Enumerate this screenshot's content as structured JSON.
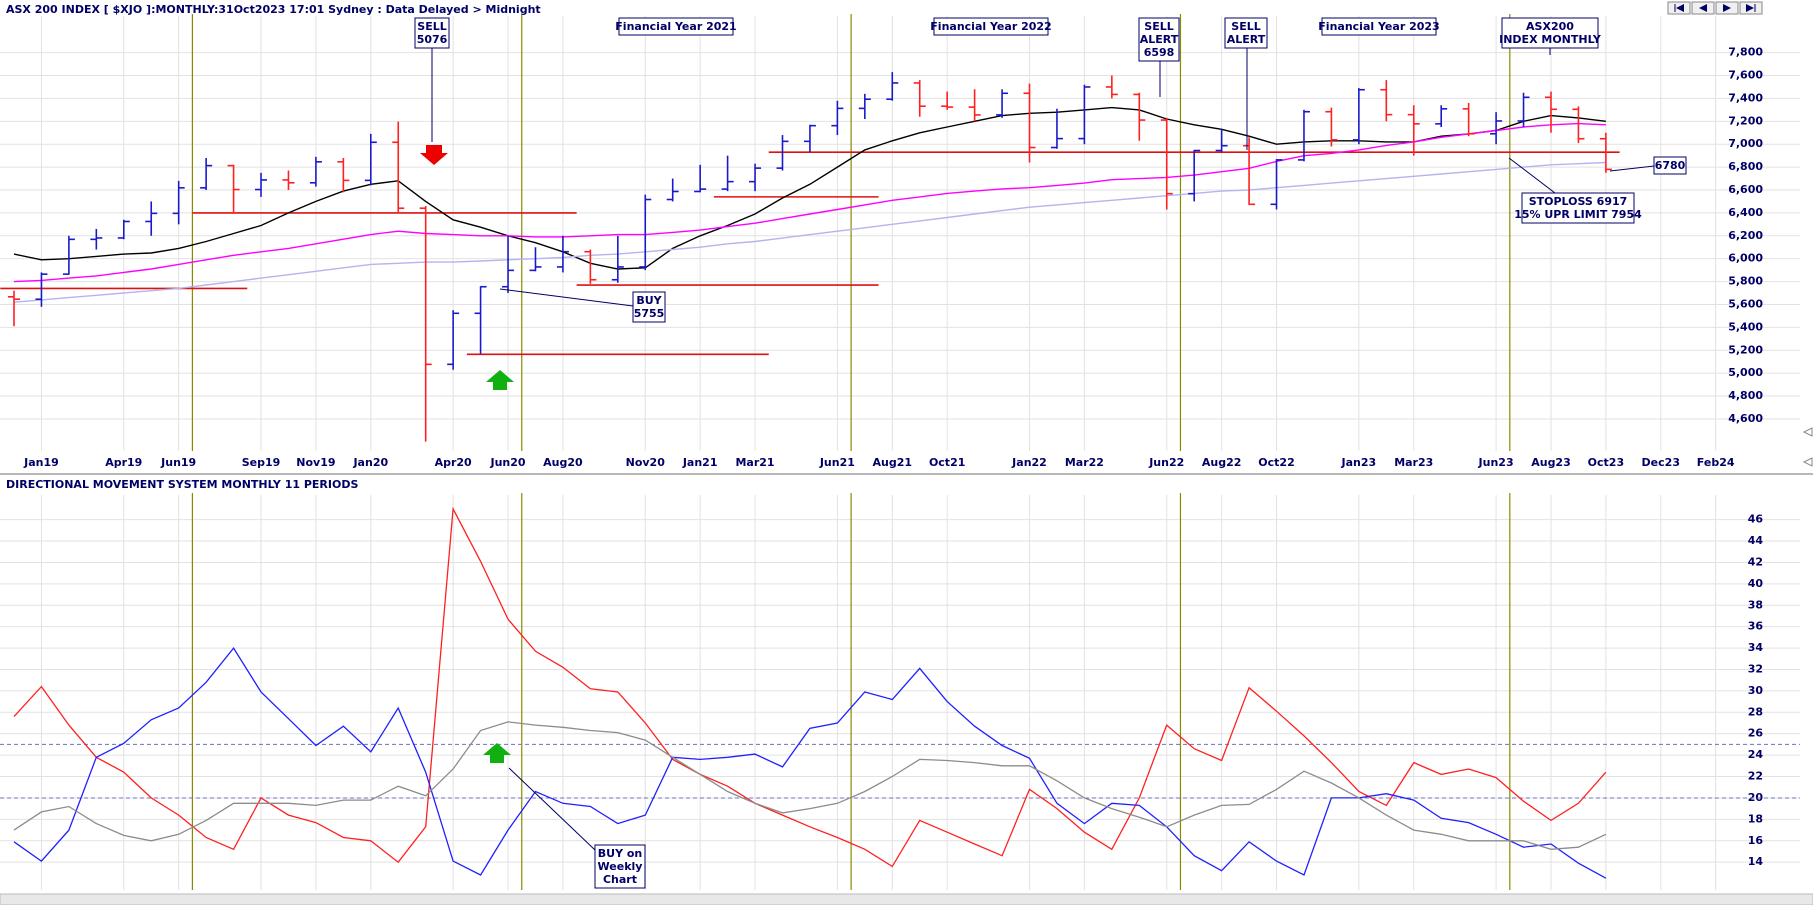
{
  "chart_data": [
    {
      "type": "ohlc",
      "title": "ASX 200 INDEX [ $XJO ]:MONTHLY:31Oct2023 17:01 Sydney : Data Delayed > Midnight",
      "x": [
        "2018-12",
        "2019-01",
        "2019-02",
        "2019-03",
        "2019-04",
        "2019-05",
        "2019-06",
        "2019-07",
        "2019-08",
        "2019-09",
        "2019-10",
        "2019-11",
        "2019-12",
        "2020-01",
        "2020-02",
        "2020-03",
        "2020-04",
        "2020-05",
        "2020-06",
        "2020-07",
        "2020-08",
        "2020-09",
        "2020-10",
        "2020-11",
        "2020-12",
        "2021-01",
        "2021-02",
        "2021-03",
        "2021-04",
        "2021-05",
        "2021-06",
        "2021-07",
        "2021-08",
        "2021-09",
        "2021-10",
        "2021-11",
        "2021-12",
        "2022-01",
        "2022-02",
        "2022-03",
        "2022-04",
        "2022-05",
        "2022-06",
        "2022-07",
        "2022-08",
        "2022-09",
        "2022-10",
        "2022-11",
        "2022-12",
        "2023-01",
        "2023-02",
        "2023-03",
        "2023-04",
        "2023-05",
        "2023-06",
        "2023-07",
        "2023-08",
        "2023-09",
        "2023-10"
      ],
      "open": [
        5667,
        5646,
        5865,
        6169,
        6181,
        6325,
        6396,
        6619,
        6813,
        6604,
        6688,
        6663,
        6846,
        6684,
        7017,
        6441,
        5077,
        5523,
        5755,
        5898,
        5928,
        6061,
        5816,
        5928,
        6517,
        6587,
        6608,
        6673,
        6791,
        7025,
        7162,
        7313,
        7393,
        7535,
        7332,
        7324,
        7256,
        7445,
        6971,
        7049,
        7500,
        7435,
        7211,
        6568,
        6945,
        6987,
        6475,
        6863,
        7284,
        7038,
        7476,
        7258,
        7178,
        7309,
        7091,
        7203,
        7410,
        7305,
        7048
      ],
      "high": [
        5720,
        5880,
        6200,
        6260,
        6340,
        6500,
        6680,
        6880,
        6820,
        6750,
        6770,
        6890,
        6880,
        7090,
        7197,
        6460,
        5550,
        5760,
        6200,
        6100,
        6200,
        6080,
        6200,
        6560,
        6700,
        6820,
        6900,
        6830,
        7080,
        7170,
        7380,
        7440,
        7630,
        7560,
        7460,
        7480,
        7480,
        7530,
        7310,
        7520,
        7600,
        7450,
        7230,
        6950,
        7130,
        7060,
        6870,
        7300,
        7320,
        7490,
        7560,
        7340,
        7340,
        7360,
        7280,
        7450,
        7460,
        7330,
        7100
      ],
      "low": [
        5410,
        5580,
        5860,
        6080,
        6170,
        6200,
        6300,
        6600,
        6400,
        6540,
        6600,
        6630,
        6580,
        6640,
        6400,
        4402,
        5030,
        5170,
        5700,
        5890,
        5880,
        5780,
        5790,
        5900,
        6500,
        6580,
        6590,
        6590,
        6770,
        6930,
        7080,
        7220,
        7380,
        7240,
        7300,
        7200,
        7230,
        6840,
        6960,
        7000,
        7400,
        7030,
        6430,
        6500,
        6930,
        6470,
        6430,
        6850,
        6980,
        7000,
        7200,
        6900,
        7150,
        7070,
        7000,
        7150,
        7100,
        7010,
        6750
      ],
      "close": [
        5646,
        5865,
        6169,
        6181,
        6325,
        6396,
        6619,
        6813,
        6604,
        6688,
        6663,
        6846,
        6684,
        7017,
        6441,
        5077,
        5523,
        5755,
        5898,
        5928,
        6061,
        5816,
        5928,
        6517,
        6587,
        6608,
        6673,
        6791,
        7025,
        7162,
        7313,
        7393,
        7535,
        7332,
        7324,
        7256,
        7445,
        6971,
        7049,
        7500,
        7435,
        7211,
        6568,
        6945,
        6987,
        6475,
        6863,
        7284,
        7038,
        7476,
        7258,
        7178,
        7309,
        7091,
        7203,
        7410,
        7305,
        7048,
        6780
      ],
      "up_color": "#1a1acc",
      "down_color": "#ff2020",
      "lines": [
        {
          "color": "#000000",
          "values": [
            6040,
            5990,
            6000,
            6020,
            6040,
            6050,
            6090,
            6150,
            6220,
            6290,
            6400,
            6500,
            6590,
            6650,
            6680,
            6500,
            6340,
            6275,
            6200,
            6140,
            6060,
            5960,
            5910,
            5920,
            6090,
            6200,
            6290,
            6390,
            6530,
            6650,
            6800,
            6950,
            7030,
            7100,
            7150,
            7200,
            7250,
            7270,
            7280,
            7300,
            7320,
            7300,
            7220,
            7170,
            7130,
            7070,
            7000,
            7020,
            7030,
            7030,
            7020,
            7020,
            7070,
            7090,
            7120,
            7200,
            7250,
            7230,
            7200
          ]
        },
        {
          "color": "#ff00ff",
          "values": [
            5800,
            5810,
            5830,
            5850,
            5880,
            5910,
            5950,
            5990,
            6030,
            6060,
            6090,
            6130,
            6170,
            6210,
            6240,
            6220,
            6210,
            6200,
            6200,
            6190,
            6190,
            6200,
            6210,
            6210,
            6230,
            6250,
            6280,
            6310,
            6350,
            6390,
            6430,
            6470,
            6510,
            6540,
            6570,
            6590,
            6610,
            6620,
            6640,
            6660,
            6690,
            6700,
            6710,
            6730,
            6760,
            6790,
            6850,
            6900,
            6920,
            6950,
            6990,
            7020,
            7060,
            7090,
            7120,
            7150,
            7170,
            7180,
            7170
          ]
        },
        {
          "color": "#b4b4f0",
          "values": [
            5620,
            5640,
            5660,
            5680,
            5700,
            5720,
            5740,
            5770,
            5800,
            5830,
            5860,
            5890,
            5920,
            5950,
            5960,
            5970,
            5970,
            5980,
            5990,
            6000,
            6010,
            6030,
            6040,
            6060,
            6080,
            6100,
            6130,
            6150,
            6180,
            6210,
            6240,
            6270,
            6300,
            6330,
            6360,
            6390,
            6420,
            6450,
            6470,
            6490,
            6510,
            6530,
            6550,
            6570,
            6590,
            6600,
            6620,
            6640,
            6660,
            6680,
            6700,
            6720,
            6740,
            6760,
            6780,
            6800,
            6820,
            6830,
            6840
          ]
        }
      ],
      "levels": [
        {
          "value": 5740,
          "from": "2018-12",
          "to": "2019-08"
        },
        {
          "value": 6400,
          "from": "2019-07",
          "to": "2020-08"
        },
        {
          "value": 5165,
          "from": "2020-05",
          "to": "2021-03"
        },
        {
          "value": 5770,
          "from": "2020-09",
          "to": "2021-07"
        },
        {
          "value": 6540,
          "from": "2021-02",
          "to": "2021-07"
        },
        {
          "value": 6930,
          "from": "2021-04",
          "to": "2023-10"
        }
      ],
      "level_color": "#e01010",
      "fy_lines": [
        "2019-07",
        "2020-07",
        "2021-07",
        "2022-07",
        "2023-07"
      ],
      "fy_color": "#8a8a00",
      "xlim": [
        "2018-12",
        "2024-05"
      ],
      "xticks": [
        {
          "value": "2019-01",
          "label": "Jan19"
        },
        {
          "value": "2019-04",
          "label": "Apr19"
        },
        {
          "value": "2019-06",
          "label": "Jun19"
        },
        {
          "value": "2019-09",
          "label": "Sep19"
        },
        {
          "value": "2019-11",
          "label": "Nov19"
        },
        {
          "value": "2020-01",
          "label": "Jan20"
        },
        {
          "value": "2020-04",
          "label": "Apr20"
        },
        {
          "value": "2020-06",
          "label": "Jun20"
        },
        {
          "value": "2020-08",
          "label": "Aug20"
        },
        {
          "value": "2020-11",
          "label": "Nov20"
        },
        {
          "value": "2021-01",
          "label": "Jan21"
        },
        {
          "value": "2021-03",
          "label": "Mar21"
        },
        {
          "value": "2021-06",
          "label": "Jun21"
        },
        {
          "value": "2021-08",
          "label": "Aug21"
        },
        {
          "value": "2021-10",
          "label": "Oct21"
        },
        {
          "value": "2022-01",
          "label": "Jan22"
        },
        {
          "value": "2022-03",
          "label": "Mar22"
        },
        {
          "value": "2022-06",
          "label": "Jun22"
        },
        {
          "value": "2022-08",
          "label": "Aug22"
        },
        {
          "value": "2022-10",
          "label": "Oct22"
        },
        {
          "value": "2023-01",
          "label": "Jan23"
        },
        {
          "value": "2023-03",
          "label": "Mar23"
        },
        {
          "value": "2023-06",
          "label": "Jun23"
        },
        {
          "value": "2023-08",
          "label": "Aug23"
        },
        {
          "value": "2023-10",
          "label": "Oct23"
        },
        {
          "value": "2023-12",
          "label": "Dec23"
        },
        {
          "value": "2024-02",
          "label": "Feb24"
        }
      ],
      "ylim": [
        4320,
        8120
      ],
      "yticks": [
        {
          "value": 4600,
          "label": "4,600"
        },
        {
          "value": 4800,
          "label": "4,800"
        },
        {
          "value": 5000,
          "label": "5,000"
        },
        {
          "value": 5200,
          "label": "5,200"
        },
        {
          "value": 5400,
          "label": "5,400"
        },
        {
          "value": 5600,
          "label": "5,600"
        },
        {
          "value": 5800,
          "label": "5,800"
        },
        {
          "value": 6000,
          "label": "6,000"
        },
        {
          "value": 6200,
          "label": "6,200"
        },
        {
          "value": 6400,
          "label": "6,400"
        },
        {
          "value": 6600,
          "label": "6,600"
        },
        {
          "value": 6800,
          "label": "6,800"
        },
        {
          "value": 7000,
          "label": "7,000"
        },
        {
          "value": 7200,
          "label": "7,200"
        },
        {
          "value": 7400,
          "label": "7,400"
        },
        {
          "value": 7600,
          "label": "7,600"
        },
        {
          "value": 7800,
          "label": "7,800"
        }
      ],
      "grid": true,
      "annotations": [
        {
          "lines": [
            "SELL",
            "5076"
          ]
        },
        {
          "lines": [
            "Financial Year 2021"
          ]
        },
        {
          "lines": [
            "Financial Year 2022"
          ]
        },
        {
          "lines": [
            "SELL",
            "ALERT",
            "6598"
          ]
        },
        {
          "lines": [
            "SELL",
            "ALERT"
          ]
        },
        {
          "lines": [
            "Financial Year 2023"
          ]
        },
        {
          "lines": [
            "ASX200",
            "INDEX MONTHLY"
          ]
        },
        {
          "lines": [
            "BUY",
            "5755"
          ]
        },
        {
          "lines": [
            "6780"
          ]
        },
        {
          "lines": [
            "STOPLOSS 6917",
            "15% UPR LIMIT 7954"
          ]
        }
      ]
    },
    {
      "type": "line",
      "title": "DIRECTIONAL MOVEMENT SYSTEM MONTHLY 11 PERIODS",
      "x": [
        "2018-12",
        "2019-01",
        "2019-02",
        "2019-03",
        "2019-04",
        "2019-05",
        "2019-06",
        "2019-07",
        "2019-08",
        "2019-09",
        "2019-10",
        "2019-11",
        "2019-12",
        "2020-01",
        "2020-02",
        "2020-03",
        "2020-04",
        "2020-05",
        "2020-06",
        "2020-07",
        "2020-08",
        "2020-09",
        "2020-10",
        "2020-11",
        "2020-12",
        "2021-01",
        "2021-02",
        "2021-03",
        "2021-04",
        "2021-05",
        "2021-06",
        "2021-07",
        "2021-08",
        "2021-09",
        "2021-10",
        "2021-11",
        "2021-12",
        "2022-01",
        "2022-02",
        "2022-03",
        "2022-04",
        "2022-05",
        "2022-06",
        "2022-07",
        "2022-08",
        "2022-09",
        "2022-10",
        "2022-11",
        "2022-12",
        "2023-01",
        "2023-02",
        "2023-03",
        "2023-04",
        "2023-05",
        "2023-06",
        "2023-07",
        "2023-08",
        "2023-09",
        "2023-10"
      ],
      "series": [
        {
          "color": "#ff2020",
          "values": [
            27.6,
            30.4,
            26.8,
            23.8,
            22.4,
            20.0,
            18.4,
            16.3,
            15.2,
            20.0,
            18.4,
            17.7,
            16.3,
            16.0,
            14.0,
            17.3,
            47.0,
            42.1,
            36.7,
            33.7,
            32.2,
            30.2,
            29.9,
            27.0,
            23.6,
            22.2,
            21.1,
            19.5,
            18.4,
            17.3,
            16.3,
            15.2,
            13.6,
            17.9,
            16.8,
            15.7,
            14.6,
            20.8,
            19.0,
            16.8,
            15.2,
            20.0,
            26.8,
            24.6,
            23.5,
            30.3,
            28.1,
            25.8,
            23.3,
            20.6,
            19.3,
            23.3,
            22.2,
            22.7,
            21.9,
            19.7,
            17.9,
            19.5,
            22.4
          ]
        },
        {
          "color": "#2020ff",
          "values": [
            15.9,
            14.1,
            17.0,
            23.8,
            25.1,
            27.3,
            28.4,
            30.8,
            34.0,
            29.9,
            27.4,
            24.9,
            26.7,
            24.3,
            28.4,
            22.4,
            14.1,
            12.8,
            17.0,
            20.6,
            19.5,
            19.2,
            17.6,
            18.4,
            23.8,
            23.6,
            23.8,
            24.1,
            22.9,
            26.5,
            27.0,
            29.9,
            29.2,
            32.1,
            29.0,
            26.7,
            24.9,
            23.7,
            19.5,
            17.6,
            19.5,
            19.3,
            17.3,
            14.6,
            13.2,
            15.9,
            14.1,
            12.8,
            20.0,
            20.0,
            20.4,
            19.8,
            18.1,
            17.7,
            16.6,
            15.4,
            15.7,
            13.9,
            12.5
          ]
        },
        {
          "color": "#8c8c8c",
          "values": [
            17.0,
            18.7,
            19.2,
            17.6,
            16.5,
            16.0,
            16.6,
            17.9,
            19.5,
            19.5,
            19.5,
            19.3,
            19.8,
            19.8,
            21.1,
            20.2,
            22.7,
            26.3,
            27.1,
            26.8,
            26.6,
            26.3,
            26.1,
            25.4,
            23.8,
            22.2,
            20.6,
            19.5,
            18.6,
            19.0,
            19.5,
            20.6,
            22.0,
            23.6,
            23.5,
            23.3,
            23.0,
            23.0,
            21.6,
            20.0,
            19.0,
            18.2,
            17.3,
            18.4,
            19.3,
            19.4,
            20.8,
            22.5,
            21.4,
            20.0,
            18.4,
            17.0,
            16.6,
            16.0,
            16.0,
            16.0,
            15.2,
            15.4,
            16.6
          ]
        }
      ],
      "ref_lines": [
        25,
        20
      ],
      "ref_color": "#7070c0",
      "fy_lines": [
        "2019-07",
        "2020-07",
        "2021-07",
        "2022-07",
        "2023-07"
      ],
      "fy_color": "#8a8a00",
      "xlim": [
        "2018-12",
        "2024-05"
      ],
      "ylim": [
        11.4,
        48.3
      ],
      "yticks": [
        14,
        16,
        18,
        20,
        22,
        24,
        26,
        28,
        30,
        32,
        34,
        36,
        38,
        40,
        42,
        44,
        46
      ],
      "grid": true,
      "annotations": [
        {
          "lines": [
            "BUY on",
            "Weekly",
            "Chart"
          ]
        }
      ]
    }
  ]
}
